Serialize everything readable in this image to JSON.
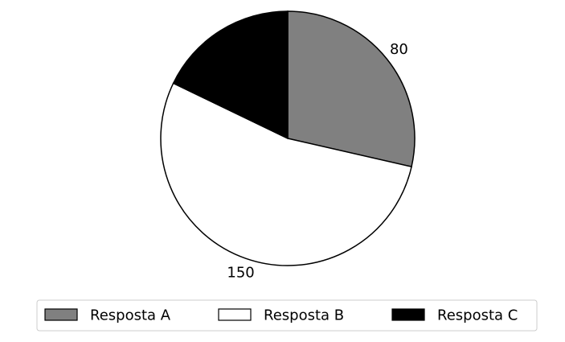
{
  "chart_data": {
    "type": "pie",
    "title": "",
    "categories": [
      "Resposta A",
      "Resposta B",
      "Resposta C"
    ],
    "values": [
      80,
      150,
      50
    ],
    "value_labels": [
      "80",
      "150",
      ""
    ],
    "colors": [
      "#808080",
      "#ffffff",
      "#000000"
    ],
    "start_angle_deg": 90,
    "direction": "clockwise",
    "legend": {
      "placement": "bottom",
      "entries": [
        "Resposta A",
        "Resposta B",
        "Resposta C"
      ]
    }
  }
}
